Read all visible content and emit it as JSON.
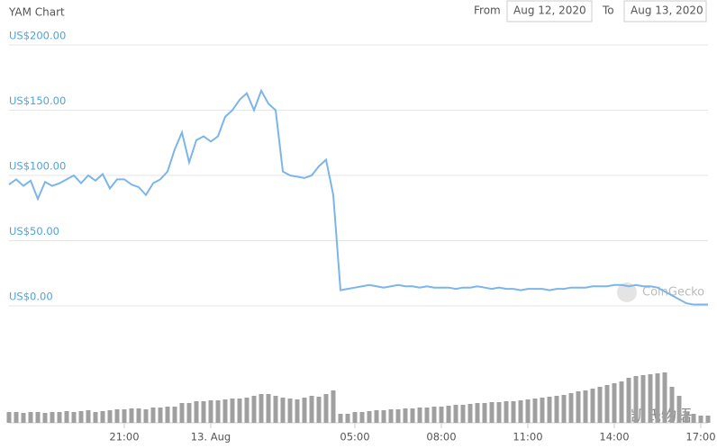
{
  "header": {
    "title": "YAM Chart",
    "from_label": "From",
    "from_value": "Aug 12, 2020",
    "to_label": "To",
    "to_value": "Aug 13, 2020"
  },
  "watermarks": [
    "CoinGecko",
    "凯氏物语"
  ],
  "chart_data": [
    {
      "type": "line",
      "categories": [
        null,
        null,
        null,
        null,
        null,
        null,
        null,
        null,
        null,
        null,
        null,
        null,
        null,
        null,
        null,
        null,
        "21:00",
        null,
        null,
        null,
        null,
        null,
        null,
        null,
        null,
        null,
        null,
        null,
        "13. Aug",
        null,
        null,
        null,
        null,
        null,
        null,
        null,
        null,
        null,
        null,
        null,
        null,
        null,
        null,
        null,
        null,
        null,
        null,
        null,
        "05:00",
        null,
        null,
        null,
        null,
        null,
        null,
        null,
        null,
        null,
        null,
        null,
        "08:00",
        null,
        null,
        null,
        null,
        null,
        null,
        null,
        null,
        null,
        null,
        null,
        "11:00",
        null,
        null,
        null,
        null,
        null,
        null,
        null,
        null,
        null,
        null,
        null,
        "14:00",
        null,
        null,
        null,
        null,
        null,
        null,
        null,
        null,
        null,
        null,
        null,
        "17:00",
        null
      ],
      "series": [
        {
          "color": "#7cb5ec",
          "values": [
            93,
            97,
            92,
            96,
            82,
            95,
            92,
            94,
            97,
            100,
            94,
            100,
            96,
            101,
            90,
            97,
            97,
            93,
            91,
            85,
            94,
            97,
            103,
            120,
            133,
            110,
            127,
            130,
            126,
            130,
            145,
            150,
            158,
            163,
            150,
            165,
            155,
            150,
            103,
            100,
            99,
            98,
            100,
            107,
            112,
            85,
            12,
            13,
            14,
            15,
            16,
            15,
            14,
            15,
            16,
            15,
            15,
            14,
            15,
            14,
            14,
            14,
            13,
            14,
            14,
            15,
            14,
            13,
            14,
            13,
            13,
            12,
            13,
            13,
            13,
            12,
            13,
            13,
            14,
            14,
            14,
            15,
            15,
            15,
            16,
            16,
            15,
            16,
            15,
            15,
            14,
            11,
            8,
            5,
            2,
            1,
            1,
            1
          ]
        }
      ],
      "ylim": [
        0,
        200
      ],
      "yticks": [
        {
          "value": 0,
          "label": "US$0.00"
        },
        {
          "value": 50,
          "label": "US$50.00"
        },
        {
          "value": 100,
          "label": "US$100.00"
        },
        {
          "value": 150,
          "label": "US$150.00"
        },
        {
          "value": 200,
          "label": "US$200.00"
        }
      ],
      "grid": true
    },
    {
      "type": "bar",
      "color": "#a0a0a0",
      "ylim": [
        0,
        60
      ],
      "values": [
        12,
        12,
        11,
        12,
        12,
        11,
        12,
        12,
        13,
        12,
        13,
        14,
        12,
        13,
        14,
        15,
        15,
        16,
        16,
        15,
        17,
        17,
        18,
        18,
        22,
        22,
        24,
        24,
        25,
        25,
        26,
        27,
        27,
        28,
        30,
        32,
        32,
        30,
        28,
        27,
        26,
        28,
        30,
        29,
        32,
        36,
        10,
        10,
        12,
        12,
        13,
        14,
        14,
        15,
        15,
        16,
        16,
        17,
        17,
        18,
        18,
        19,
        20,
        20,
        21,
        22,
        22,
        23,
        23,
        24,
        24,
        25,
        26,
        27,
        28,
        29,
        30,
        31,
        33,
        35,
        36,
        38,
        40,
        42,
        44,
        46,
        50,
        52,
        53,
        54,
        55,
        56,
        40,
        30,
        12,
        10,
        8,
        8
      ]
    }
  ]
}
